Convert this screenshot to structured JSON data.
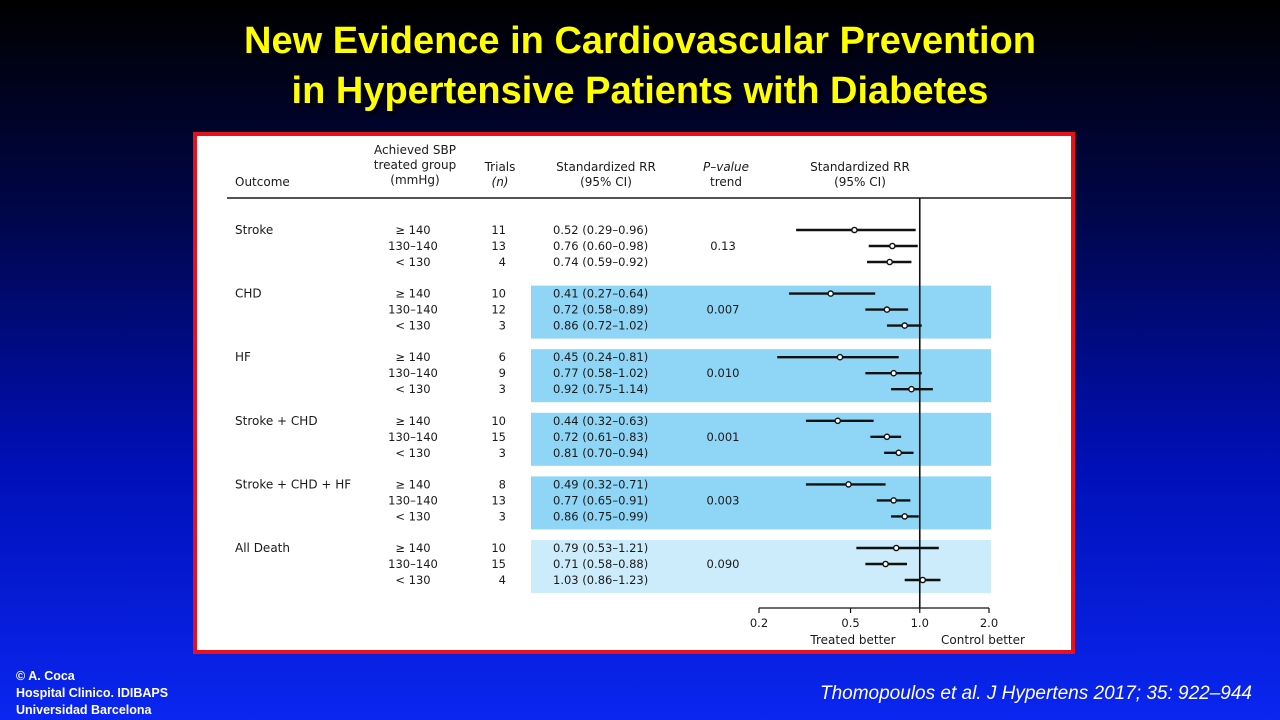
{
  "slide": {
    "title_line1": "New Evidence in Cardiovascular Prevention",
    "title_line2": "in Hypertensive Patients with Diabetes",
    "credit_line1": "© A. Coca",
    "credit_line2": "Hospital Clinico. IDIBAPS",
    "credit_line3": "Universidad Barcelona",
    "citation": "Thomopoulos et al. J Hypertens 2017; 35: 922–944"
  },
  "colors": {
    "title": "#ffff00",
    "panel_border": "#e8101a",
    "band_strong": "#8fd5f5",
    "band_light": "#cdecfb"
  },
  "chart_data": {
    "type": "forest",
    "headers": {
      "outcome": "Outcome",
      "sbp": [
        "Achieved SBP",
        "treated group",
        "(mmHg)"
      ],
      "trials": [
        "Trials",
        "(n)"
      ],
      "rr": [
        "Standardized RR",
        "(95% CI)"
      ],
      "pvalue": [
        "P–value",
        "trend"
      ],
      "plot": [
        "Standardized RR",
        "(95% CI)"
      ]
    },
    "x_scale": "log",
    "xlim": [
      0.2,
      2.0
    ],
    "x_ticks": [
      "0.2",
      "0.5",
      "1.0",
      "2.0"
    ],
    "reference_line": 1.0,
    "x_left_label": "Treated better",
    "x_right_label": "Control better",
    "groups": [
      {
        "outcome": "Stroke",
        "p_trend": "0.13",
        "band": "none",
        "rows": [
          {
            "sbp": "≥ 140",
            "trials": "11",
            "rr_text": "0.52 (0.29–0.96)",
            "rr": 0.52,
            "lo": 0.29,
            "hi": 0.96
          },
          {
            "sbp": "130–140",
            "trials": "13",
            "rr_text": "0.76 (0.60–0.98)",
            "rr": 0.76,
            "lo": 0.6,
            "hi": 0.98
          },
          {
            "sbp": "< 130",
            "trials": "4",
            "rr_text": "0.74 (0.59–0.92)",
            "rr": 0.74,
            "lo": 0.59,
            "hi": 0.92
          }
        ]
      },
      {
        "outcome": "CHD",
        "p_trend": "0.007",
        "band": "strong",
        "rows": [
          {
            "sbp": "≥ 140",
            "trials": "10",
            "rr_text": "0.41 (0.27–0.64)",
            "rr": 0.41,
            "lo": 0.27,
            "hi": 0.64
          },
          {
            "sbp": "130–140",
            "trials": "12",
            "rr_text": "0.72 (0.58–0.89)",
            "rr": 0.72,
            "lo": 0.58,
            "hi": 0.89
          },
          {
            "sbp": "< 130",
            "trials": "3",
            "rr_text": "0.86 (0.72–1.02)",
            "rr": 0.86,
            "lo": 0.72,
            "hi": 1.02
          }
        ]
      },
      {
        "outcome": "HF",
        "p_trend": "0.010",
        "band": "strong",
        "rows": [
          {
            "sbp": "≥ 140",
            "trials": "6",
            "rr_text": "0.45 (0.24–0.81)",
            "rr": 0.45,
            "lo": 0.24,
            "hi": 0.81
          },
          {
            "sbp": "130–140",
            "trials": "9",
            "rr_text": "0.77 (0.58–1.02)",
            "rr": 0.77,
            "lo": 0.58,
            "hi": 1.02
          },
          {
            "sbp": "< 130",
            "trials": "3",
            "rr_text": "0.92 (0.75–1.14)",
            "rr": 0.92,
            "lo": 0.75,
            "hi": 1.14
          }
        ]
      },
      {
        "outcome": "Stroke + CHD",
        "p_trend": "0.001",
        "band": "strong",
        "rows": [
          {
            "sbp": "≥ 140",
            "trials": "10",
            "rr_text": "0.44 (0.32–0.63)",
            "rr": 0.44,
            "lo": 0.32,
            "hi": 0.63
          },
          {
            "sbp": "130–140",
            "trials": "15",
            "rr_text": "0.72 (0.61–0.83)",
            "rr": 0.72,
            "lo": 0.61,
            "hi": 0.83
          },
          {
            "sbp": "< 130",
            "trials": "3",
            "rr_text": "0.81 (0.70–0.94)",
            "rr": 0.81,
            "lo": 0.7,
            "hi": 0.94
          }
        ]
      },
      {
        "outcome": "Stroke + CHD + HF",
        "p_trend": "0.003",
        "band": "strong",
        "rows": [
          {
            "sbp": "≥ 140",
            "trials": "8",
            "rr_text": "0.49 (0.32–0.71)",
            "rr": 0.49,
            "lo": 0.32,
            "hi": 0.71
          },
          {
            "sbp": "130–140",
            "trials": "13",
            "rr_text": "0.77 (0.65–0.91)",
            "rr": 0.77,
            "lo": 0.65,
            "hi": 0.91
          },
          {
            "sbp": "< 130",
            "trials": "3",
            "rr_text": "0.86 (0.75–0.99)",
            "rr": 0.86,
            "lo": 0.75,
            "hi": 0.99
          }
        ]
      },
      {
        "outcome": "All Death",
        "p_trend": "0.090",
        "band": "light",
        "rows": [
          {
            "sbp": "≥ 140",
            "trials": "10",
            "rr_text": "0.79 (0.53–1.21)",
            "rr": 0.79,
            "lo": 0.53,
            "hi": 1.21
          },
          {
            "sbp": "130–140",
            "trials": "15",
            "rr_text": "0.71 (0.58–0.88)",
            "rr": 0.71,
            "lo": 0.58,
            "hi": 0.88
          },
          {
            "sbp": "< 130",
            "trials": "4",
            "rr_text": "1.03 (0.86–1.23)",
            "rr": 1.03,
            "lo": 0.86,
            "hi": 1.23
          }
        ]
      }
    ]
  }
}
